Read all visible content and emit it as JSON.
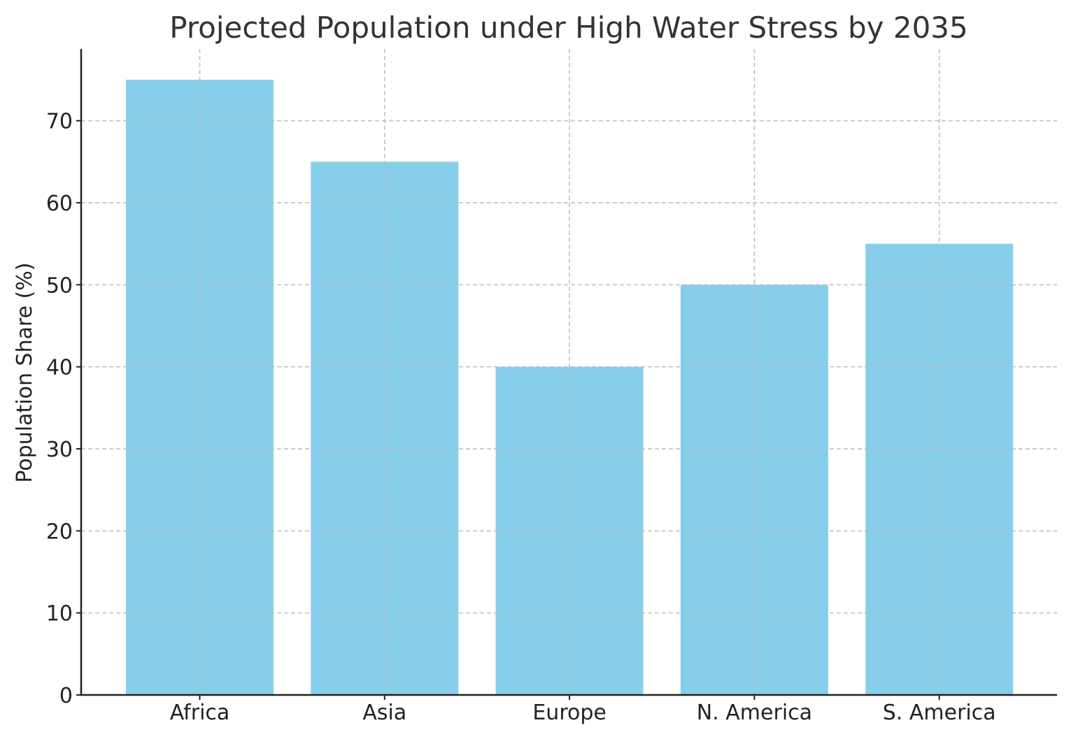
{
  "chart_data": {
    "type": "bar",
    "title": "Projected Population under High Water Stress by 2035",
    "xlabel": "",
    "ylabel": "Population Share (%)",
    "categories": [
      "Africa",
      "Asia",
      "Europe",
      "N. America",
      "S. America"
    ],
    "values": [
      75,
      65,
      40,
      50,
      55
    ],
    "ylim": [
      0,
      78.75
    ],
    "yticks": [
      0,
      10,
      20,
      30,
      40,
      50,
      60,
      70
    ],
    "grid": true,
    "bar_color": "#87CEEB",
    "legend": "none"
  }
}
